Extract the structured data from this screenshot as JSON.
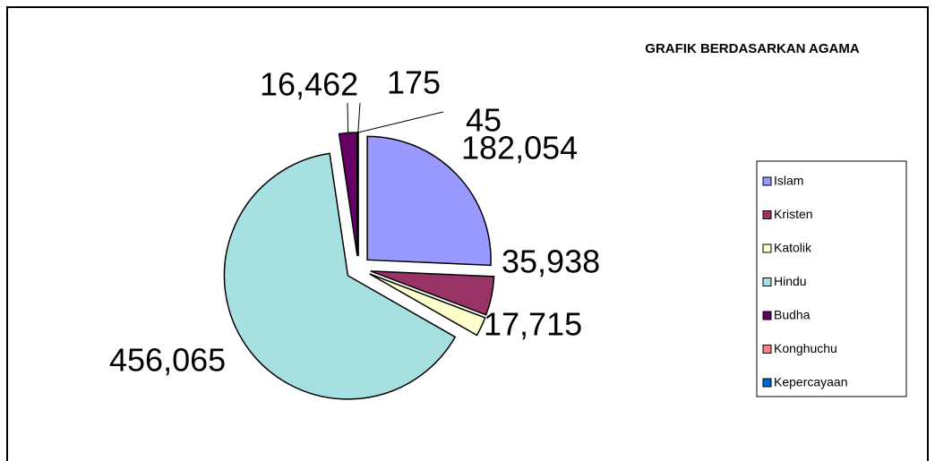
{
  "chart_data": {
    "type": "pie",
    "title": "GRAFIK BERDASARKAN AGAMA",
    "categories": [
      "Islam",
      "Kristen",
      "Katolik",
      "Hindu",
      "Budha",
      "Konghuchu",
      "Kepercayaan"
    ],
    "values": [
      182054,
      35938,
      17715,
      456065,
      16462,
      175,
      45
    ],
    "value_labels": [
      "182,054",
      "35,938",
      "17,715",
      "456,065",
      "16,462",
      "175",
      "45"
    ],
    "colors": [
      "#9999ff",
      "#993366",
      "#ffffcc",
      "#a6e0e0",
      "#660066",
      "#ff8080",
      "#0066cc"
    ],
    "legend": "right"
  }
}
